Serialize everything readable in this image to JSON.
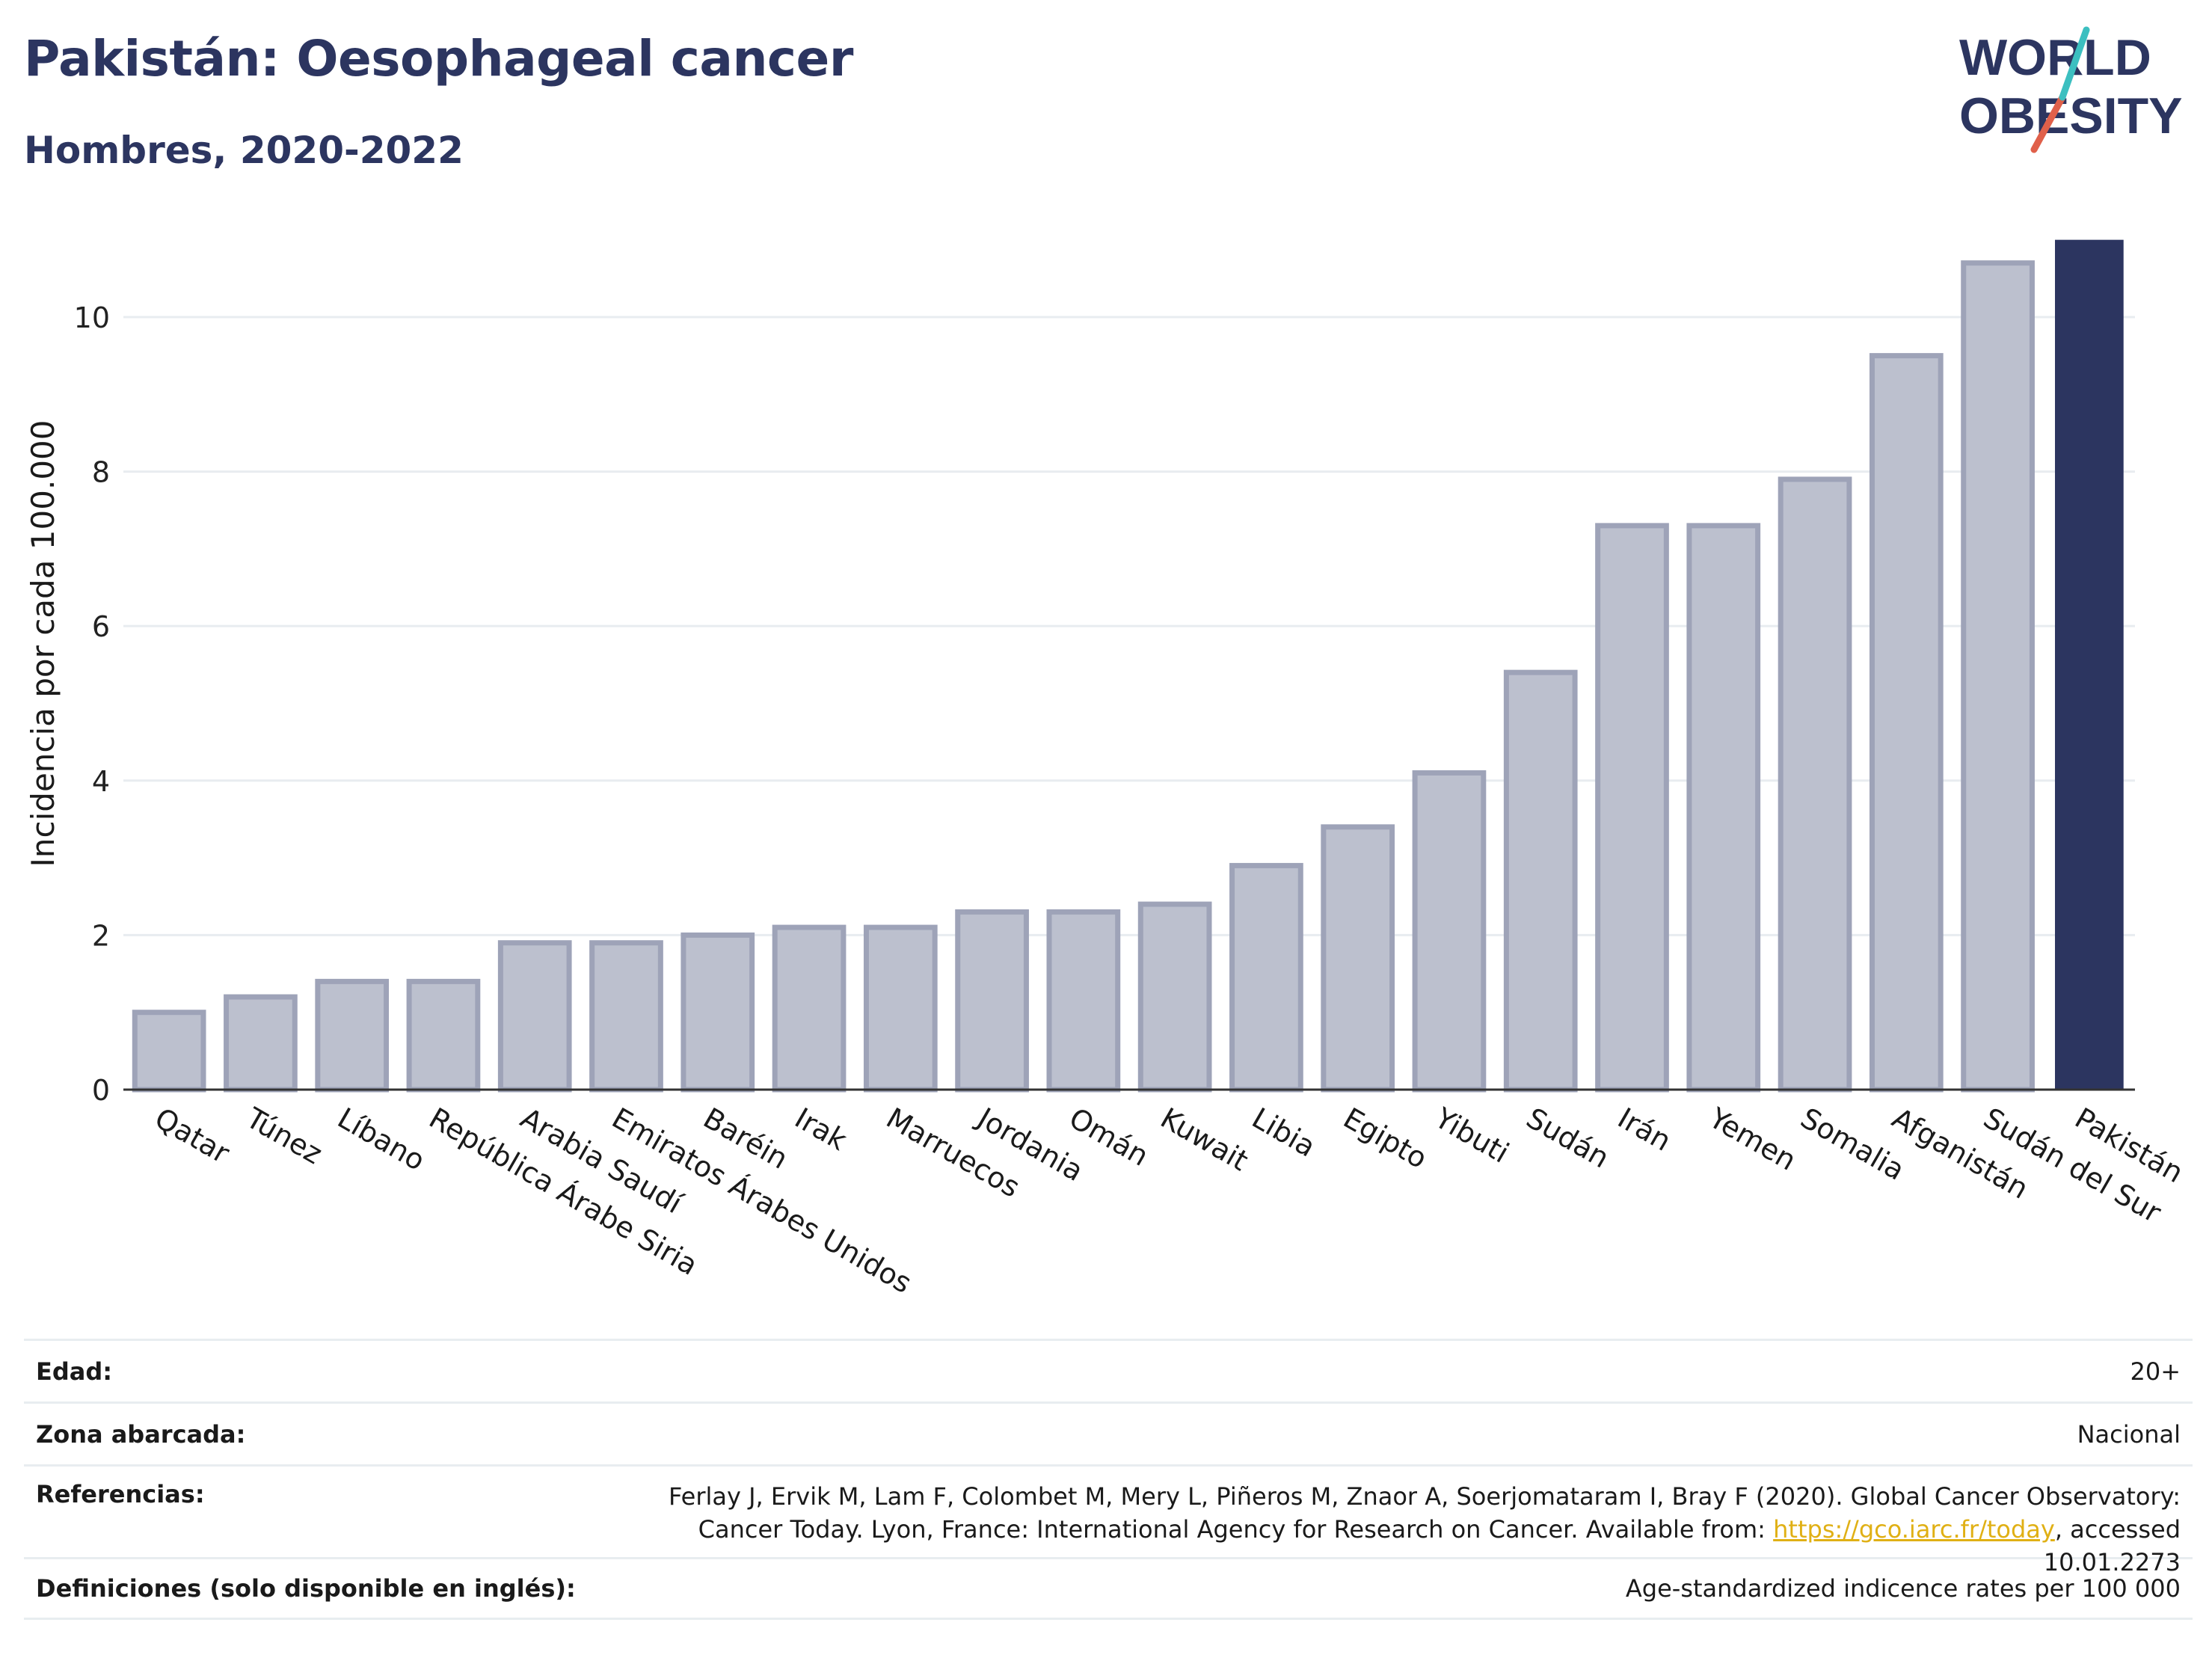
{
  "header": {
    "title": "Pakistán: Oesophageal cancer",
    "subtitle": "Hombres, 2020-2022"
  },
  "logo": {
    "line1": "WORLD",
    "line2": "OBESITY",
    "colors": {
      "text": "#2c3560",
      "slash_teal": "#3cbfc0",
      "slash_red": "#e0604a"
    }
  },
  "colors": {
    "bar_default": "#bcc0ce",
    "bar_default_stroke": "#9ea3b8",
    "bar_highlight": "#2c3560",
    "axis": "#333333",
    "grid": "#e8ecf0"
  },
  "chart_data": {
    "type": "bar",
    "ylabel": "Incidencia por cada 100.000",
    "xlabel": "",
    "ylim": [
      0,
      11.2
    ],
    "yticks": [
      0,
      2,
      4,
      6,
      8,
      10
    ],
    "grid": true,
    "highlight": "Pakistán",
    "categories": [
      "Qatar",
      "Túnez",
      "Líbano",
      "República Árabe Siria",
      "Arabia Saudí",
      "Emiratos Árabes Unidos",
      "Baréin",
      "Irak",
      "Marruecos",
      "Jordania",
      "Omán",
      "Kuwait",
      "Libia",
      "Egipto",
      "Yibuti",
      "Sudán",
      "Irán",
      "Yemen",
      "Somalia",
      "Afganistán",
      "Sudán del Sur",
      "Pakistán"
    ],
    "values": [
      1.0,
      1.2,
      1.4,
      1.4,
      1.9,
      1.9,
      2.0,
      2.1,
      2.1,
      2.3,
      2.3,
      2.4,
      2.9,
      3.4,
      4.1,
      5.4,
      7.3,
      7.3,
      7.9,
      9.5,
      10.7,
      11.0
    ]
  },
  "meta": [
    {
      "label": "Edad:",
      "value": "20+"
    },
    {
      "label": "Zona abarcada:",
      "value": "Nacional"
    },
    {
      "label": "Referencias:",
      "value_pre": "Ferlay J, Ervik M, Lam F, Colombet M, Mery L, Piñeros M, Znaor A, Soerjomataram I, Bray F (2020). Global Cancer Observatory: Cancer Today. Lyon, France: International Agency for Research on Cancer. Available from: ",
      "link": "https://gco.iarc.fr/today",
      "value_post": ", accessed 10.01.2273"
    },
    {
      "label": "Definiciones (solo disponible en inglés):",
      "value": "Age-standardized indicence rates per 100 000"
    }
  ]
}
